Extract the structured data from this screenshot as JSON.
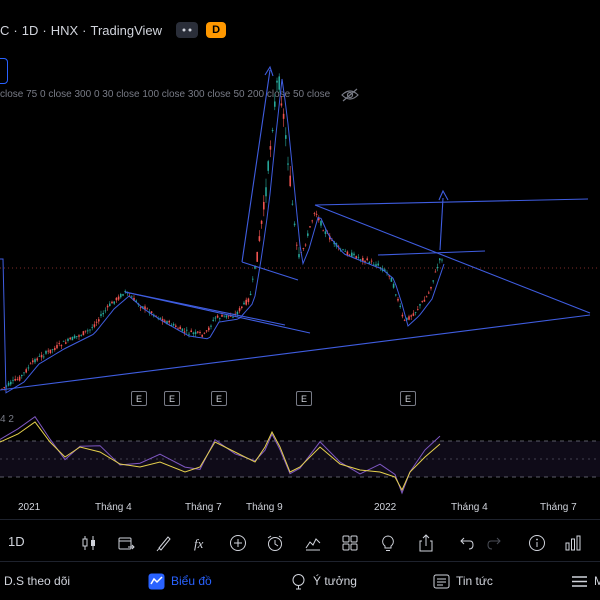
{
  "header": {
    "symbol_tail": "C",
    "interval": "1D",
    "exchange": "HNX",
    "source": "TradingView",
    "badge_grey": "",
    "badge_orange": "D"
  },
  "ma_legend": "close 75 0 close 300 0 30 close 100 close 300 close 50 200 close 50 close",
  "rsi_label": "4 2",
  "x_axis": [
    "2021",
    "Tháng 4",
    "Tháng 7",
    "Tháng 9",
    "2022",
    "Tháng 4",
    "Tháng 7"
  ],
  "earnings_marker": "E",
  "toolbar": {
    "interval": "1D",
    "icons": [
      "candles-icon",
      "replay-icon",
      "brush-icon",
      "fx-icon",
      "plus-icon",
      "alarm-icon",
      "bar-chart-icon",
      "layout-grid-icon",
      "idea-bulb-icon",
      "share-icon",
      "undo-icon",
      "redo-icon",
      "info-icon",
      "chart-type-icon"
    ]
  },
  "nav": {
    "watchlist": "D.S theo dõi",
    "chart": "Biểu đồ",
    "ideas": "Ý tưởng",
    "news": "Tin tức",
    "menu": "M"
  },
  "colors": {
    "up": "#26a69a",
    "down": "#ef5350",
    "line_blue": "#3f5de0",
    "rsi": "#7e57c2",
    "rsi_ma": "#e6d14d",
    "accent": "#2962ff"
  }
}
